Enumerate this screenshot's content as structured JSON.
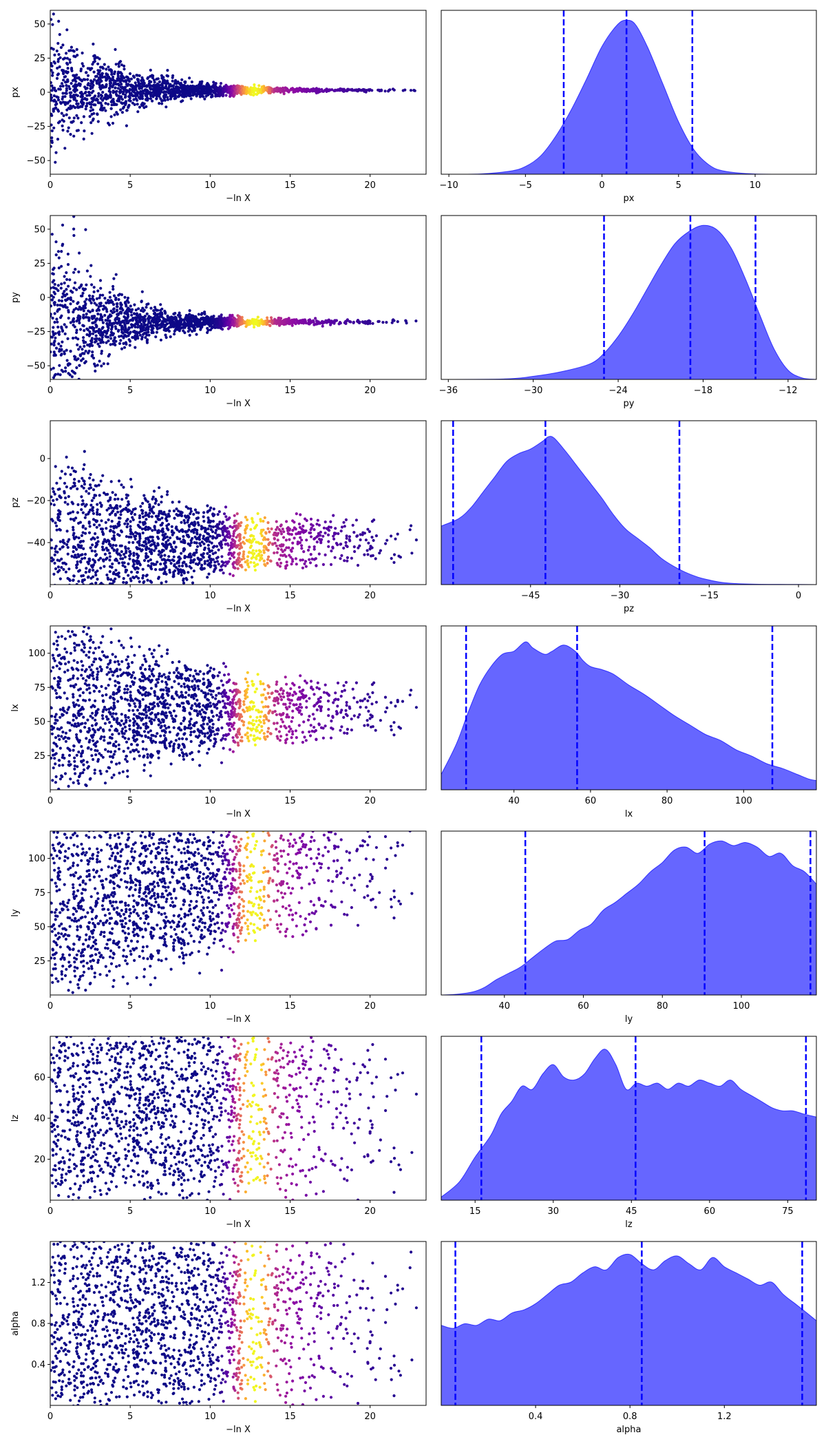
{
  "figure": {
    "background": "#ffffff",
    "kde_color": "#0000ff",
    "colormap": "plasma"
  },
  "chart_data": [
    {
      "type": "scatter",
      "row": 0,
      "param": "px",
      "ylabel": "px",
      "xlabel": "−ln X",
      "xlim": [
        0,
        23.5
      ],
      "ylim": [
        -60,
        60
      ],
      "xticks": [
        0,
        5,
        10,
        15,
        20
      ],
      "yticks": [
        -50,
        -25,
        0,
        25,
        50
      ],
      "center": 1.5,
      "spread_start": 55,
      "spread_end": 0.5,
      "contract_rate": 0.25,
      "bounded": false,
      "colormap": "plasma",
      "peak_x": 13
    },
    {
      "type": "area",
      "row": 0,
      "param": "px",
      "xlabel": "px",
      "xlim": [
        -10.5,
        14
      ],
      "xticks": [
        -10,
        -5,
        0,
        5,
        10
      ],
      "quantiles": [
        -2.5,
        1.6,
        5.9
      ],
      "density": {
        "x": [
          -10.5,
          -8,
          -6,
          -5,
          -4,
          -3,
          -2,
          -1,
          0,
          1,
          1.6,
          2.2,
          3,
          4,
          5,
          6,
          7,
          8,
          10,
          14
        ],
        "y": [
          0,
          0.002,
          0.02,
          0.05,
          0.12,
          0.25,
          0.42,
          0.62,
          0.83,
          0.97,
          1.0,
          0.97,
          0.82,
          0.58,
          0.34,
          0.16,
          0.06,
          0.02,
          0.002,
          0
        ]
      }
    },
    {
      "type": "scatter",
      "row": 1,
      "param": "py",
      "ylabel": "py",
      "xlabel": "−ln X",
      "xlim": [
        0,
        23.5
      ],
      "ylim": [
        -60,
        60
      ],
      "xticks": [
        0,
        5,
        10,
        15,
        20
      ],
      "yticks": [
        -50,
        -25,
        0,
        25,
        50
      ],
      "center": -18,
      "spread_start": 80,
      "spread_end": 1.5,
      "contract_rate": 0.3,
      "bounded": false,
      "colormap": "plasma",
      "peak_x": 13
    },
    {
      "type": "area",
      "row": 1,
      "param": "py",
      "xlabel": "py",
      "xlim": [
        -36.5,
        -10
      ],
      "xticks": [
        -36,
        -30,
        -24,
        -18,
        -12
      ],
      "quantiles": [
        -25,
        -18.9,
        -14.3
      ],
      "density": {
        "x": [
          -36.5,
          -32,
          -30,
          -28,
          -26,
          -25,
          -24,
          -23,
          -22,
          -21,
          -20,
          -19,
          -18,
          -17,
          -16,
          -15,
          -14,
          -13,
          -12,
          -11,
          -10
        ],
        "y": [
          0,
          0.003,
          0.02,
          0.05,
          0.1,
          0.17,
          0.28,
          0.42,
          0.58,
          0.74,
          0.88,
          0.96,
          1.0,
          0.97,
          0.85,
          0.65,
          0.42,
          0.2,
          0.06,
          0.01,
          0
        ]
      }
    },
    {
      "type": "scatter",
      "row": 2,
      "param": "pz",
      "ylabel": "pz",
      "xlabel": "−ln X",
      "xlim": [
        0,
        23.5
      ],
      "ylim": [
        -60,
        18
      ],
      "xticks": [
        0,
        5,
        10,
        15,
        20
      ],
      "yticks": [
        -40,
        -20,
        0
      ],
      "center": -40,
      "spread_start": 70,
      "spread_end": 12,
      "contract_rate": 0.15,
      "bounded": true,
      "colormap": "plasma",
      "peak_x": 13
    },
    {
      "type": "area",
      "row": 2,
      "param": "pz",
      "xlabel": "pz",
      "xlim": [
        -60,
        3
      ],
      "xticks": [
        -45,
        -30,
        -15,
        0
      ],
      "quantiles": [
        -58,
        -42.5,
        -20
      ],
      "density": {
        "x": [
          -60,
          -57,
          -55,
          -53,
          -51,
          -49,
          -47,
          -45,
          -43,
          -42,
          -41,
          -39,
          -37,
          -35,
          -33,
          -31,
          -29,
          -27,
          -25,
          -23,
          -21,
          -19,
          -17,
          -15,
          -13,
          -10,
          -5,
          0,
          3
        ],
        "y": [
          0.38,
          0.43,
          0.5,
          0.6,
          0.7,
          0.8,
          0.85,
          0.88,
          0.93,
          0.96,
          0.95,
          0.86,
          0.76,
          0.66,
          0.56,
          0.45,
          0.36,
          0.3,
          0.24,
          0.17,
          0.12,
          0.08,
          0.05,
          0.03,
          0.015,
          0.006,
          0.002,
          0.001,
          0
        ]
      }
    },
    {
      "type": "scatter",
      "row": 3,
      "param": "lx",
      "ylabel": "lx",
      "xlabel": "−ln X",
      "xlim": [
        0,
        23.5
      ],
      "ylim": [
        0,
        120
      ],
      "xticks": [
        0,
        5,
        10,
        15,
        20
      ],
      "yticks": [
        25,
        50,
        75,
        100
      ],
      "center": 58,
      "spread_start": 110,
      "spread_end": 20,
      "contract_rate": 0.12,
      "bounded": true,
      "colormap": "plasma",
      "peak_x": 13
    },
    {
      "type": "area",
      "row": 3,
      "param": "lx",
      "xlabel": "lx",
      "xlim": [
        21,
        119
      ],
      "xticks": [
        40,
        60,
        80,
        100
      ],
      "quantiles": [
        27.5,
        56.5,
        107.5
      ],
      "density": {
        "x": [
          21,
          25,
          28,
          31,
          34,
          37,
          40,
          43,
          45,
          48,
          50,
          53,
          56,
          58,
          60,
          63,
          66,
          70,
          74,
          78,
          82,
          86,
          90,
          94,
          98,
          102,
          106,
          110,
          114,
          117,
          119
        ],
        "y": [
          0.1,
          0.3,
          0.5,
          0.68,
          0.8,
          0.88,
          0.9,
          0.96,
          0.92,
          0.88,
          0.9,
          0.94,
          0.9,
          0.84,
          0.8,
          0.78,
          0.75,
          0.68,
          0.62,
          0.55,
          0.48,
          0.42,
          0.36,
          0.32,
          0.26,
          0.22,
          0.17,
          0.14,
          0.1,
          0.07,
          0.06
        ]
      }
    },
    {
      "type": "scatter",
      "row": 4,
      "param": "ly",
      "ylabel": "ly",
      "xlabel": "−ln X",
      "xlim": [
        0,
        23.5
      ],
      "ylim": [
        0,
        120
      ],
      "xticks": [
        0,
        5,
        10,
        15,
        20
      ],
      "yticks": [
        25,
        50,
        75,
        100
      ],
      "center": 65,
      "spread_start": 120,
      "spread_end": 50,
      "contract_rate": 0.1,
      "bounded": true,
      "drift_to": 95,
      "colormap": "plasma",
      "peak_x": 13
    },
    {
      "type": "area",
      "row": 4,
      "param": "ly",
      "xlabel": "ly",
      "xlim": [
        24,
        119
      ],
      "xticks": [
        40,
        60,
        80,
        100
      ],
      "quantiles": [
        45.3,
        90.7,
        117.5
      ],
      "density": {
        "x": [
          24,
          28,
          32,
          35,
          38,
          41,
          44,
          47,
          50,
          53,
          56,
          59,
          62,
          65,
          68,
          71,
          74,
          77,
          80,
          83,
          86,
          89,
          92,
          95,
          98,
          101,
          104,
          107,
          110,
          113,
          116,
          119
        ],
        "y": [
          0,
          0.005,
          0.02,
          0.05,
          0.1,
          0.14,
          0.18,
          0.24,
          0.3,
          0.35,
          0.36,
          0.42,
          0.46,
          0.55,
          0.6,
          0.66,
          0.72,
          0.8,
          0.86,
          0.94,
          0.96,
          0.92,
          0.98,
          1.0,
          0.97,
          0.99,
          0.96,
          0.9,
          0.92,
          0.84,
          0.8,
          0.72
        ]
      }
    },
    {
      "type": "scatter",
      "row": 5,
      "param": "lz",
      "ylabel": "lz",
      "xlabel": "−ln X",
      "xlim": [
        0,
        23.5
      ],
      "ylim": [
        0,
        80
      ],
      "xticks": [
        0,
        5,
        10,
        15,
        20
      ],
      "yticks": [
        20,
        40,
        60
      ],
      "center": 46,
      "spread_start": 80,
      "spread_end": 55,
      "contract_rate": 0.05,
      "bounded": true,
      "colormap": "plasma",
      "peak_x": 13
    },
    {
      "type": "area",
      "row": 5,
      "param": "lz",
      "xlabel": "lz",
      "xlim": [
        8.5,
        80.5
      ],
      "xticks": [
        15,
        30,
        45,
        60,
        75
      ],
      "quantiles": [
        16.2,
        45.8,
        78.5
      ],
      "density": {
        "x": [
          8.5,
          12,
          15,
          18,
          20,
          22,
          24,
          26,
          28,
          30,
          32,
          34,
          36,
          38,
          40,
          42,
          44,
          46,
          48,
          50,
          52,
          54,
          56,
          58,
          60,
          62,
          64,
          66,
          68,
          70,
          72,
          74,
          76,
          78,
          80.5
        ],
        "y": [
          0.02,
          0.12,
          0.28,
          0.42,
          0.56,
          0.64,
          0.74,
          0.72,
          0.82,
          0.88,
          0.8,
          0.78,
          0.82,
          0.92,
          0.98,
          0.88,
          0.72,
          0.76,
          0.74,
          0.76,
          0.72,
          0.76,
          0.74,
          0.78,
          0.76,
          0.74,
          0.78,
          0.72,
          0.68,
          0.64,
          0.6,
          0.58,
          0.58,
          0.56,
          0.54
        ]
      }
    },
    {
      "type": "scatter",
      "row": 6,
      "param": "alpha",
      "ylabel": "alpha",
      "xlabel": "−ln X",
      "xlim": [
        0,
        23.5
      ],
      "ylim": [
        0,
        1.6
      ],
      "xticks": [
        0,
        5,
        10,
        15,
        20
      ],
      "yticks": [
        0.4,
        0.8,
        1.2
      ],
      "center": 0.85,
      "spread_start": 1.6,
      "spread_end": 0.9,
      "contract_rate": 0.05,
      "bounded": true,
      "colormap": "plasma",
      "peak_x": 13
    },
    {
      "type": "area",
      "row": 6,
      "param": "alpha",
      "xlabel": "alpha",
      "xlim": [
        0,
        1.59
      ],
      "xticks": [
        0.4,
        0.8,
        1.2
      ],
      "quantiles": [
        0.06,
        0.85,
        1.53
      ],
      "density": {
        "x": [
          0,
          0.05,
          0.1,
          0.15,
          0.2,
          0.25,
          0.3,
          0.35,
          0.4,
          0.45,
          0.5,
          0.55,
          0.6,
          0.65,
          0.7,
          0.75,
          0.8,
          0.85,
          0.9,
          0.95,
          1.0,
          1.05,
          1.1,
          1.15,
          1.2,
          1.25,
          1.3,
          1.35,
          1.4,
          1.45,
          1.5,
          1.55,
          1.59
        ],
        "y": [
          0.52,
          0.5,
          0.53,
          0.52,
          0.56,
          0.55,
          0.6,
          0.62,
          0.66,
          0.72,
          0.78,
          0.8,
          0.86,
          0.9,
          0.88,
          0.96,
          0.98,
          0.92,
          0.88,
          0.94,
          0.97,
          0.92,
          0.88,
          0.96,
          0.9,
          0.86,
          0.82,
          0.78,
          0.8,
          0.72,
          0.66,
          0.6,
          0.55
        ]
      }
    }
  ]
}
